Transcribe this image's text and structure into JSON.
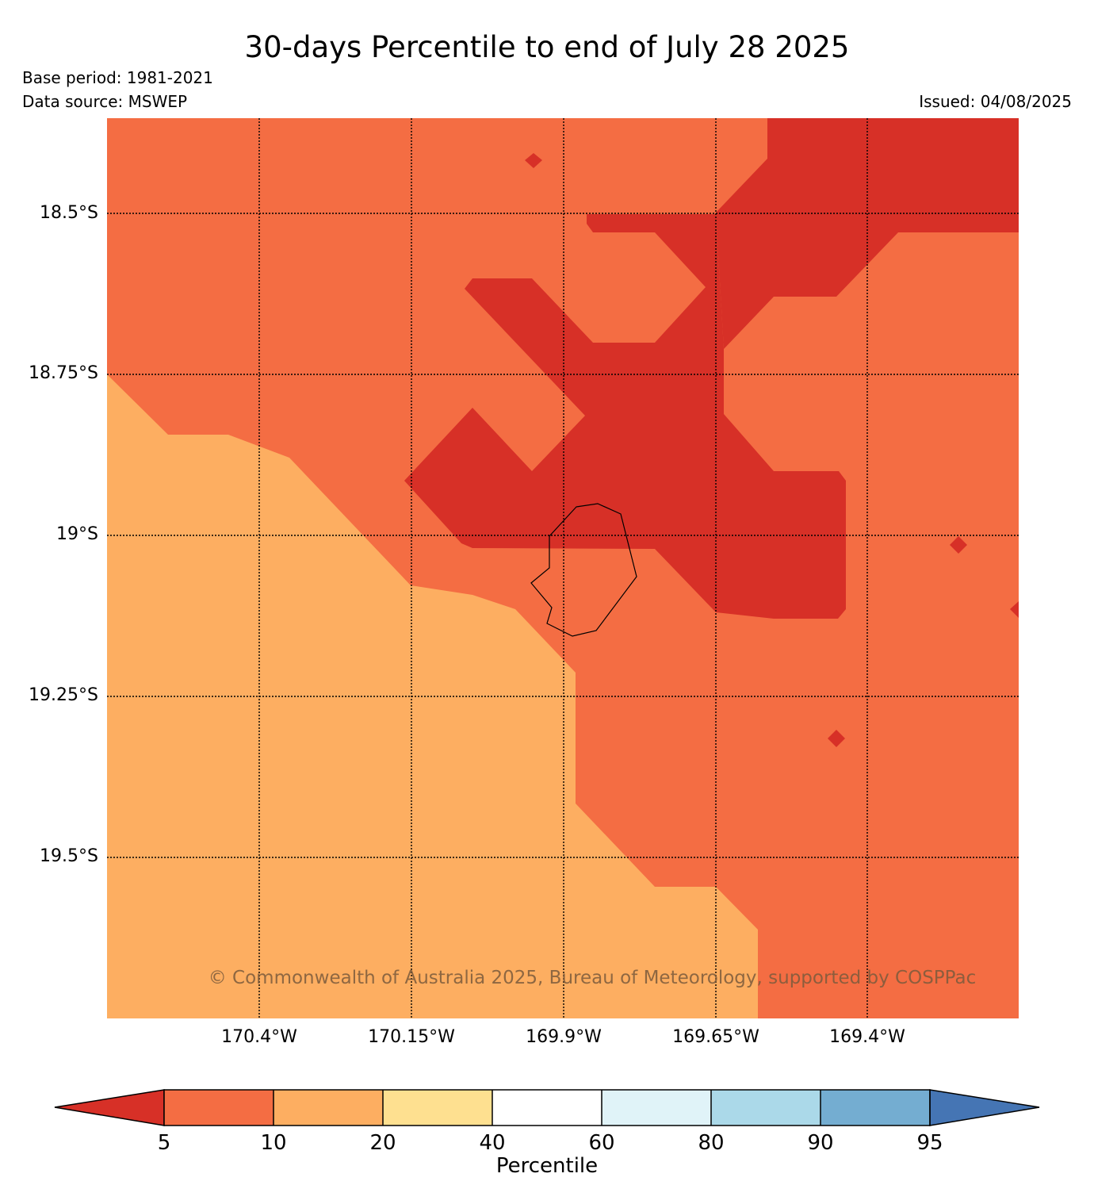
{
  "title": "30-days Percentile to end of July 28 2025",
  "base_period": "Base period: 1981-2021",
  "data_source": "Data source: MSWEP",
  "issued": "Issued: 04/08/2025",
  "credit": "© Commonwealth of Australia 2025, Bureau of Meteorology, supported by COSPPac",
  "map": {
    "lat_labels": [
      "18.5°S",
      "18.75°S",
      "19°S",
      "19.25°S",
      "19.5°S"
    ],
    "lon_labels": [
      "170.4°W",
      "170.15°W",
      "169.9°W",
      "169.65°W",
      "169.4°W"
    ]
  },
  "colorbar": {
    "label": "Percentile",
    "ticks": [
      "5",
      "10",
      "20",
      "40",
      "60",
      "80",
      "90",
      "95"
    ],
    "colors": {
      "below_5": "#d73027",
      "5_10": "#f46d43",
      "10_20": "#fdae61",
      "20_40": "#fee090",
      "40_60": "#ffffff",
      "60_80": "#e0f3f8",
      "80_90": "#abd9e9",
      "90_95": "#74add1",
      "above_95": "#4575b4"
    }
  }
}
